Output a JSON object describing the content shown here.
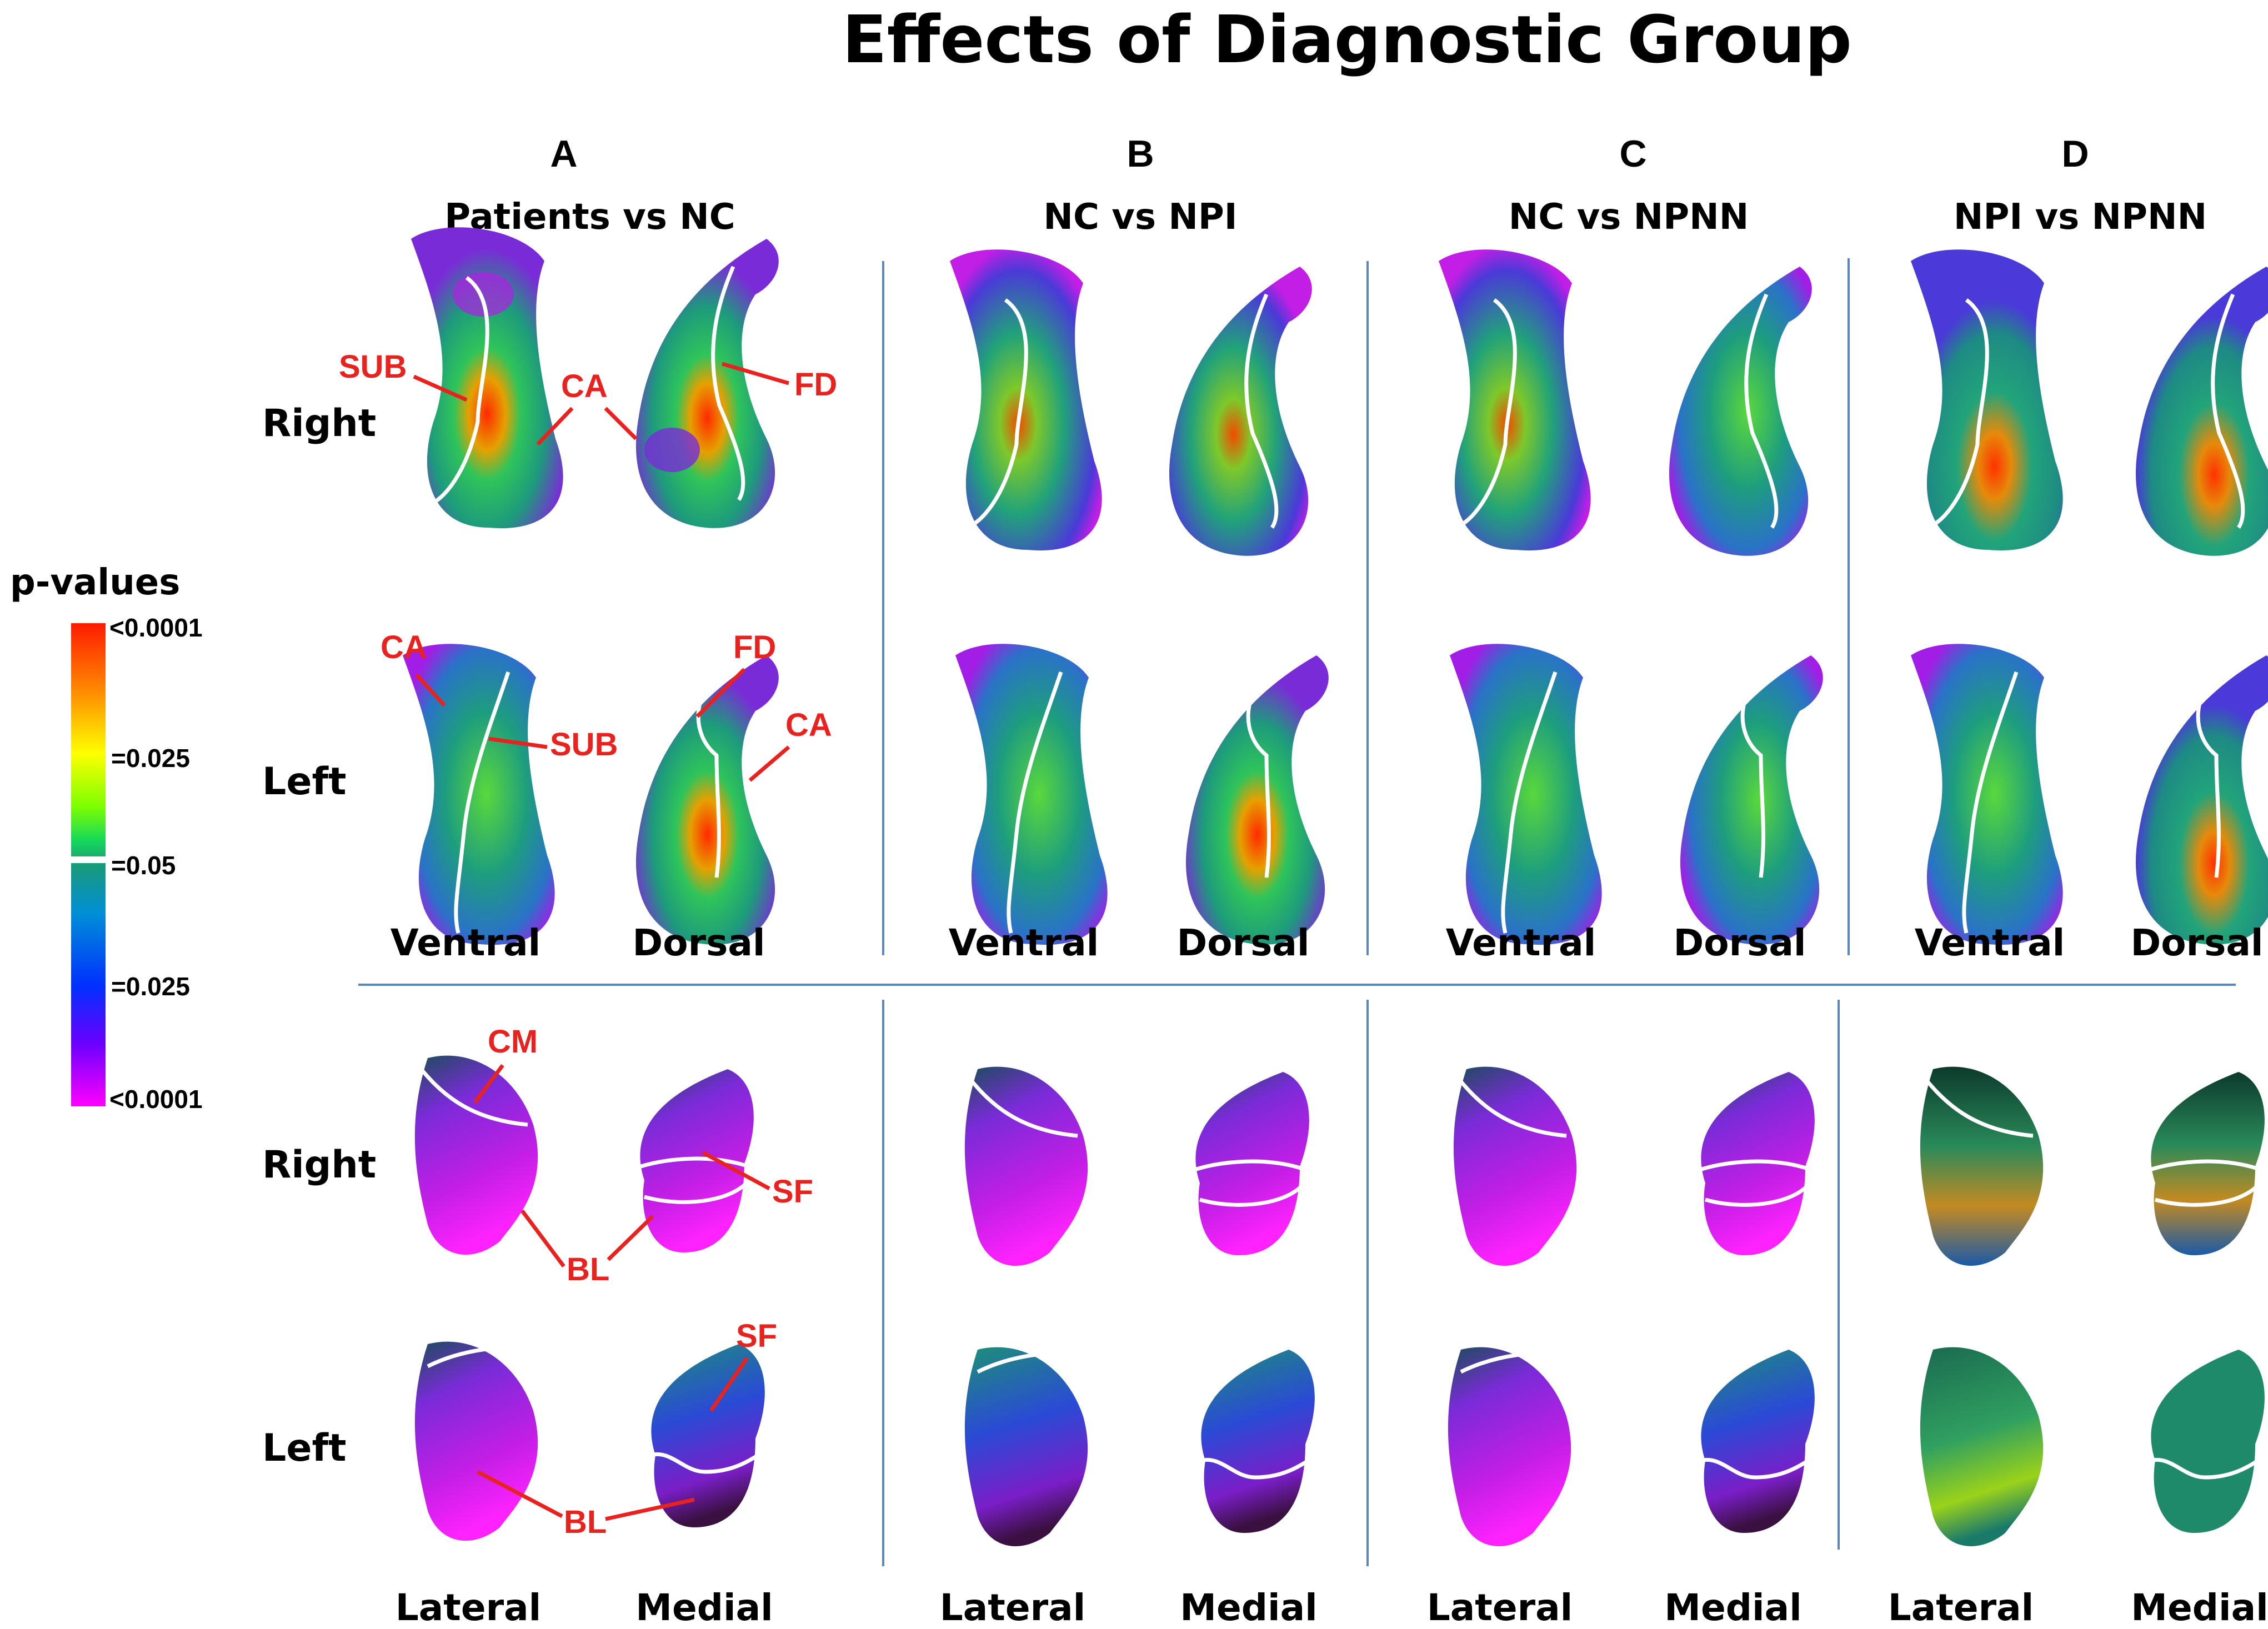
{
  "title": "Effects of Diagnostic Group",
  "columns": [
    {
      "letter": "A",
      "comparison": "Patients vs NC"
    },
    {
      "letter": "B",
      "comparison": "NC vs NPI"
    },
    {
      "letter": "C",
      "comparison": "NC vs NPNN"
    },
    {
      "letter": "D",
      "comparison": "NPI vs NPNN"
    }
  ],
  "rows": {
    "hippo_right": "Right",
    "hippo_left": "Left",
    "amyg_right": "Right",
    "amyg_left": "Left"
  },
  "views": {
    "hippocampus": [
      "Ventral",
      "Dorsal"
    ],
    "amygdala": [
      "Lateral",
      "Medial"
    ]
  },
  "colorbar": {
    "label": "p-values",
    "ticks": [
      "<0.0001",
      "=0.025",
      "=0.05",
      "=0.025",
      "<0.0001"
    ],
    "colors_top": [
      "#ff1a00",
      "#ff8a00",
      "#ffff00",
      "#7cff00",
      "#16d85a",
      "#1a9a78"
    ],
    "colors_bottom": [
      "#1a9a78",
      "#008fd6",
      "#0030ff",
      "#6a00ff",
      "#ff00ff"
    ]
  },
  "annotations": {
    "hippo_right": [
      "SUB",
      "CA",
      "FD"
    ],
    "hippo_left": [
      "CA",
      "SUB",
      "FD",
      "CA"
    ],
    "amyg_right": [
      "CM",
      "SF",
      "BL"
    ],
    "amyg_left": [
      "SF",
      "BL"
    ]
  }
}
